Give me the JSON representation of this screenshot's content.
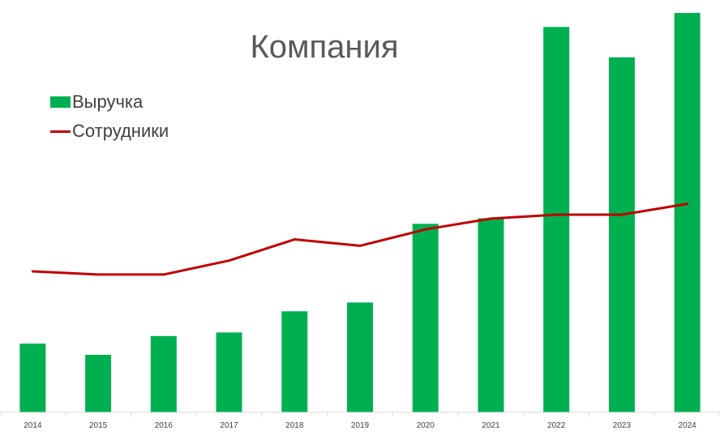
{
  "chart_data": {
    "type": "bar",
    "title": "Компания",
    "categories": [
      "2014",
      "2015",
      "2016",
      "2017",
      "2018",
      "2019",
      "2020",
      "2021",
      "2022",
      "2023",
      "2024"
    ],
    "series": [
      {
        "name": "Выручка",
        "type": "bar",
        "color": "#00B050",
        "values": [
          17.2,
          14.4,
          19.1,
          20.0,
          25.3,
          27.5,
          47.2,
          48.6,
          96.5,
          88.9,
          100
        ]
      },
      {
        "name": "Сотрудники",
        "type": "line",
        "color": "#C00000",
        "values": [
          35.3,
          34.5,
          34.5,
          38.0,
          43.3,
          41.7,
          45.8,
          48.5,
          49.5,
          49.5,
          52.2
        ]
      }
    ],
    "ylim": [
      0,
      100
    ],
    "legend_position": "top-left",
    "grid": false
  }
}
